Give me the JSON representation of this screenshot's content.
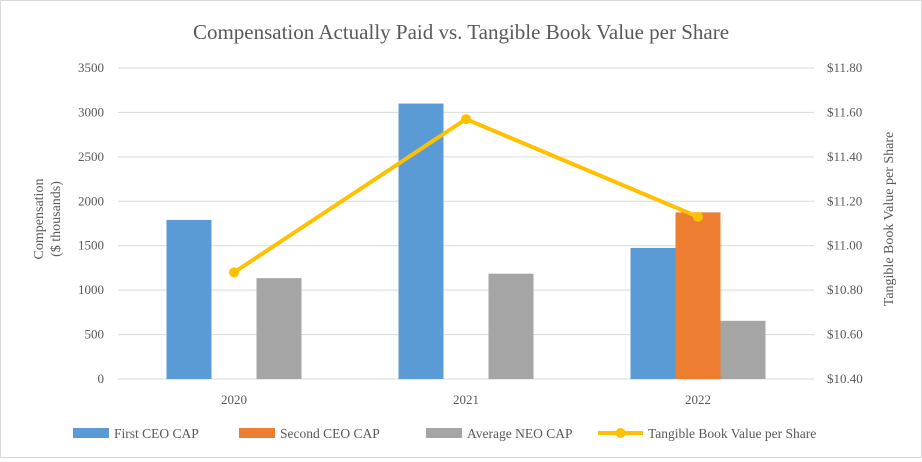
{
  "chart_data": {
    "type": "bar",
    "title": "Compensation Actually Paid vs. Tangible Book Value per Share",
    "categories": [
      "2020",
      "2021",
      "2022"
    ],
    "ylabel_left_lines": [
      "Compensation",
      "($ thousands)"
    ],
    "ylabel_right": "Tangible Book Value per Share",
    "ylim_left": [
      0,
      3500
    ],
    "ylim_right": [
      10.4,
      11.8
    ],
    "left_ticks": [
      0,
      500,
      1000,
      1500,
      2000,
      2500,
      3000,
      3500
    ],
    "left_tick_labels": [
      "0",
      "500",
      "1000",
      "1500",
      "2000",
      "2500",
      "3000",
      "3500"
    ],
    "right_ticks": [
      10.4,
      10.6,
      10.8,
      11.0,
      11.2,
      11.4,
      11.6,
      11.8
    ],
    "right_tick_labels": [
      "$10.40",
      "$10.60",
      "$10.80",
      "$11.00",
      "$11.20",
      "$11.40",
      "$11.60",
      "$11.80"
    ],
    "grid": true,
    "legend_position": "bottom",
    "series": [
      {
        "name": "First CEO CAP",
        "kind": "bar",
        "axis": "left",
        "color": "#5b9bd5",
        "values": [
          1790,
          3100,
          1475
        ]
      },
      {
        "name": "Second CEO CAP",
        "kind": "bar",
        "axis": "left",
        "color": "#ed7d31",
        "values": [
          null,
          null,
          1875
        ]
      },
      {
        "name": "Average NEO CAP",
        "kind": "bar",
        "axis": "left",
        "color": "#a5a5a5",
        "values": [
          1135,
          1185,
          655
        ]
      },
      {
        "name": "Tangible Book Value per Share",
        "kind": "line",
        "axis": "right",
        "color": "#ffc000",
        "values": [
          10.88,
          11.57,
          11.13
        ]
      }
    ]
  }
}
